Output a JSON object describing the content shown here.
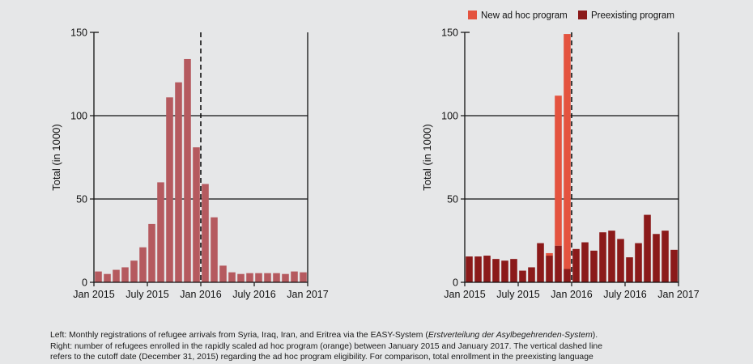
{
  "colors": {
    "background": "#e6e7e8",
    "left_bar": "#b55a5f",
    "new_program": "#e4533f",
    "preexisting": "#8b1a1a"
  },
  "chart_data": [
    {
      "type": "bar",
      "x": [
        "2015-01",
        "2015-02",
        "2015-03",
        "2015-04",
        "2015-05",
        "2015-06",
        "2015-07",
        "2015-08",
        "2015-09",
        "2015-10",
        "2015-11",
        "2015-12",
        "2016-01",
        "2016-02",
        "2016-03",
        "2016-04",
        "2016-05",
        "2016-06",
        "2016-07",
        "2016-08",
        "2016-09",
        "2016-10",
        "2016-11",
        "2016-12"
      ],
      "values": [
        6.5,
        5,
        7.5,
        9,
        13,
        21,
        35,
        60,
        111,
        120,
        134,
        81,
        59,
        39,
        10,
        6,
        5,
        5.5,
        5.5,
        5.5,
        5.5,
        5,
        6.5,
        6
      ],
      "xticks": [
        "Jan 2015",
        "July 2015",
        "Jan 2016",
        "July 2016",
        "Jan 2017"
      ],
      "yticks": [
        "0",
        "50",
        "100",
        "150"
      ],
      "ylabel": "Total (in 1000)",
      "ylim": [
        0,
        150
      ],
      "cutoff": "Dec 31, 2015",
      "grid": "horizontal"
    },
    {
      "type": "bar",
      "stacked": true,
      "x": [
        "2015-01",
        "2015-02",
        "2015-03",
        "2015-04",
        "2015-05",
        "2015-06",
        "2015-07",
        "2015-08",
        "2015-09",
        "2015-10",
        "2015-11",
        "2015-12",
        "2016-01",
        "2016-02",
        "2016-03",
        "2016-04",
        "2016-05",
        "2016-06",
        "2016-07",
        "2016-08",
        "2016-09",
        "2016-10",
        "2016-11",
        "2016-12"
      ],
      "series": [
        {
          "name": "Preexisting program",
          "values": [
            15.5,
            15.5,
            16,
            14,
            13,
            14,
            7,
            9,
            23.5,
            16,
            22,
            8,
            20,
            24,
            19,
            30,
            31,
            26,
            15,
            23.5,
            40.5,
            29,
            31,
            19.5
          ]
        },
        {
          "name": "New ad hoc program",
          "values": [
            0,
            0,
            0,
            0,
            0,
            0,
            0,
            0,
            0,
            1.5,
            90,
            141,
            0,
            0,
            0,
            0,
            0,
            0,
            0,
            0,
            0,
            0,
            0,
            0
          ]
        }
      ],
      "xticks": [
        "Jan 2015",
        "July 2015",
        "Jan 2016",
        "July 2016",
        "Jan 2017"
      ],
      "yticks": [
        "0",
        "50",
        "100",
        "150"
      ],
      "ylabel": "Total (in 1000)",
      "ylim": [
        0,
        150
      ],
      "cutoff": "Dec 31, 2015",
      "grid": "horizontal",
      "legend": "top-right"
    }
  ],
  "caption": {
    "line1_prefix": "Left: Monthly registrations of refugee arrivals from Syria, Iraq, Iran, and Eritrea via the EASY-System (",
    "line1_italic": "Erstverteilung der Asylbegehrenden-System",
    "line1_suffix": ").",
    "line2": "Right: number of refugees enrolled in the rapidly scaled ad hoc program (orange) between January 2015 and January 2017. The vertical dashed line",
    "line3": "refers to the cutoff date (December 31, 2015) regarding the ad hoc program eligibility. For comparison, total enrollment in the preexisting language"
  }
}
